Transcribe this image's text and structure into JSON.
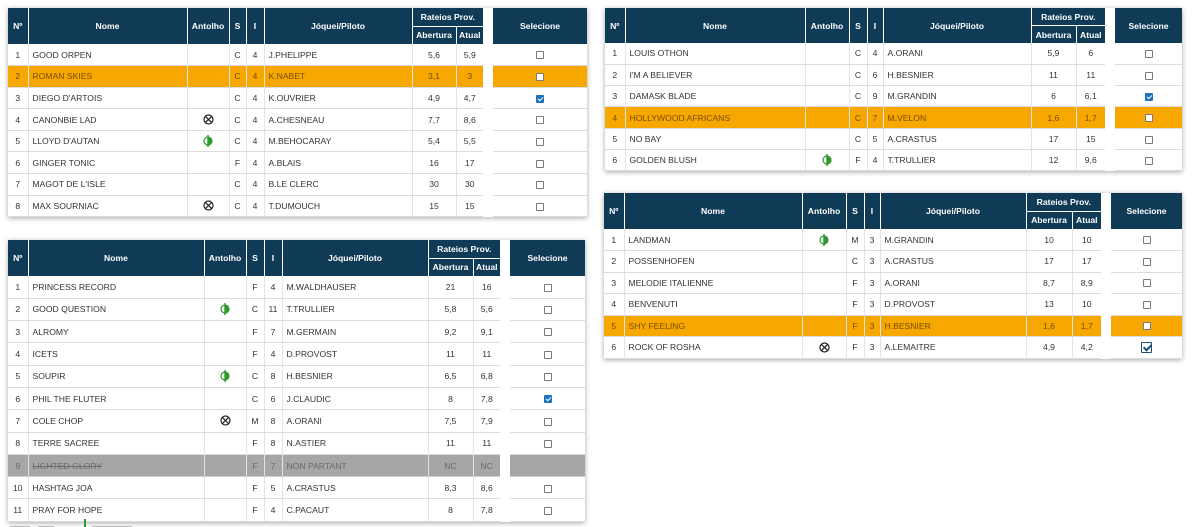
{
  "headers": {
    "no": "Nº",
    "name": "Nome",
    "antolho": "Antolho",
    "s": "S",
    "i": "I",
    "jockey": "Jóquei/Piloto",
    "rateios": "Rateios Prov.",
    "abertura": "Abertura",
    "atual": "Atual",
    "selecione": "Selecione"
  },
  "icons": {
    "cross_blinkers": "crossed-circle-icon",
    "half_blinkers": "half-circle-icon"
  },
  "colors": {
    "header": "#0f3b57",
    "highlight": "#f6a800",
    "scratched": "#a6a6a6",
    "half_icon": "#2e9a2e"
  },
  "races": [
    {
      "rows": [
        {
          "no": "1",
          "name": "GOOD ORPEN",
          "antolho": "",
          "s": "C",
          "i": "4",
          "jockey": "J.PHELIPPE",
          "abertura": "5,6",
          "atual": "5,9",
          "checked": false,
          "state": ""
        },
        {
          "no": "2",
          "name": "ROMAN SKIES",
          "antolho": "",
          "s": "C",
          "i": "4",
          "jockey": "K.NABET",
          "abertura": "3,1",
          "atual": "3",
          "checked": false,
          "state": "hl"
        },
        {
          "no": "3",
          "name": "DIEGO D'ARTOIS",
          "antolho": "",
          "s": "C",
          "i": "4",
          "jockey": "K.OUVRIER",
          "abertura": "4,9",
          "atual": "4,7",
          "checked": true,
          "state": ""
        },
        {
          "no": "4",
          "name": "CANONBIE LAD",
          "antolho": "cross",
          "s": "C",
          "i": "4",
          "jockey": "A.CHESNEAU",
          "abertura": "7,7",
          "atual": "8,6",
          "checked": false,
          "state": ""
        },
        {
          "no": "5",
          "name": "LLOYD D'AUTAN",
          "antolho": "half",
          "s": "C",
          "i": "4",
          "jockey": "M.BEHOCARAY",
          "abertura": "5,4",
          "atual": "5,5",
          "checked": false,
          "state": ""
        },
        {
          "no": "6",
          "name": "GINGER TONIC",
          "antolho": "",
          "s": "F",
          "i": "4",
          "jockey": "A.BLAIS",
          "abertura": "16",
          "atual": "17",
          "checked": false,
          "state": ""
        },
        {
          "no": "7",
          "name": "MAGOT DE L'ISLE",
          "antolho": "",
          "s": "C",
          "i": "4",
          "jockey": "B.LE CLERC",
          "abertura": "30",
          "atual": "30",
          "checked": false,
          "state": ""
        },
        {
          "no": "8",
          "name": "MAX SOURNIAC",
          "antolho": "cross",
          "s": "C",
          "i": "4",
          "jockey": "T.DUMOUCH",
          "abertura": "15",
          "atual": "15",
          "checked": false,
          "state": ""
        }
      ]
    },
    {
      "rows": [
        {
          "no": "1",
          "name": "PRINCESS RECORD",
          "antolho": "",
          "s": "F",
          "i": "4",
          "jockey": "M.WALDHAUSER",
          "abertura": "21",
          "atual": "16",
          "checked": false,
          "state": ""
        },
        {
          "no": "2",
          "name": "GOOD QUESTION",
          "antolho": "half",
          "s": "C",
          "i": "11",
          "jockey": "T.TRULLIER",
          "abertura": "5,8",
          "atual": "5,6",
          "checked": false,
          "state": ""
        },
        {
          "no": "3",
          "name": "ALROMY",
          "antolho": "",
          "s": "F",
          "i": "7",
          "jockey": "M.GERMAIN",
          "abertura": "9,2",
          "atual": "9,1",
          "checked": false,
          "state": ""
        },
        {
          "no": "4",
          "name": "ICETS",
          "antolho": "",
          "s": "F",
          "i": "4",
          "jockey": "D.PROVOST",
          "abertura": "11",
          "atual": "11",
          "checked": false,
          "state": ""
        },
        {
          "no": "5",
          "name": "SOUPIR",
          "antolho": "half",
          "s": "C",
          "i": "8",
          "jockey": "H.BESNIER",
          "abertura": "6,5",
          "atual": "6,8",
          "checked": false,
          "state": ""
        },
        {
          "no": "6",
          "name": "PHIL THE FLUTER",
          "antolho": "",
          "s": "C",
          "i": "6",
          "jockey": "J.CLAUDIC",
          "abertura": "8",
          "atual": "7,8",
          "checked": true,
          "state": ""
        },
        {
          "no": "7",
          "name": "COLE CHOP",
          "antolho": "cross",
          "s": "M",
          "i": "8",
          "jockey": "A.ORANI",
          "abertura": "7,5",
          "atual": "7,9",
          "checked": false,
          "state": ""
        },
        {
          "no": "8",
          "name": "TERRE SACREE",
          "antolho": "",
          "s": "F",
          "i": "8",
          "jockey": "N.ASTIER",
          "abertura": "11",
          "atual": "11",
          "checked": false,
          "state": ""
        },
        {
          "no": "9",
          "name": "LIGHTED GLORY",
          "antolho": "",
          "s": "F",
          "i": "7",
          "jockey": "NON PARTANT",
          "abertura": "NC",
          "atual": "NC",
          "checked": false,
          "state": "scr"
        },
        {
          "no": "10",
          "name": "HASHTAG JOA",
          "antolho": "",
          "s": "F",
          "i": "5",
          "jockey": "A.CRASTUS",
          "abertura": "8,3",
          "atual": "8,6",
          "checked": false,
          "state": ""
        },
        {
          "no": "11",
          "name": "PRAY FOR HOPE",
          "antolho": "",
          "s": "F",
          "i": "4",
          "jockey": "C.PACAUT",
          "abertura": "8",
          "atual": "7,8",
          "checked": false,
          "state": ""
        }
      ]
    },
    {
      "rows": [
        {
          "no": "1",
          "name": "LOUIS OTHON",
          "antolho": "",
          "s": "C",
          "i": "4",
          "jockey": "A.ORANI",
          "abertura": "5,9",
          "atual": "6",
          "checked": false,
          "state": ""
        },
        {
          "no": "2",
          "name": "I'M A BELIEVER",
          "antolho": "",
          "s": "C",
          "i": "6",
          "jockey": "H.BESNIER",
          "abertura": "11",
          "atual": "11",
          "checked": false,
          "state": ""
        },
        {
          "no": "3",
          "name": "DAMASK BLADE",
          "antolho": "",
          "s": "C",
          "i": "9",
          "jockey": "M.GRANDIN",
          "abertura": "6",
          "atual": "6,1",
          "checked": true,
          "state": ""
        },
        {
          "no": "4",
          "name": "HOLLYWOOD AFRICANS",
          "antolho": "",
          "s": "C",
          "i": "7",
          "jockey": "M.VELON",
          "abertura": "1,6",
          "atual": "1,7",
          "checked": false,
          "state": "hl"
        },
        {
          "no": "5",
          "name": "NO BAY",
          "antolho": "",
          "s": "C",
          "i": "5",
          "jockey": "A.CRASTUS",
          "abertura": "17",
          "atual": "15",
          "checked": false,
          "state": ""
        },
        {
          "no": "6",
          "name": "GOLDEN BLUSH",
          "antolho": "half",
          "s": "F",
          "i": "4",
          "jockey": "T.TRULLIER",
          "abertura": "12",
          "atual": "9,6",
          "checked": false,
          "state": ""
        }
      ]
    },
    {
      "rows": [
        {
          "no": "1",
          "name": "LANDMAN",
          "antolho": "half",
          "s": "M",
          "i": "3",
          "jockey": "M.GRANDIN",
          "abertura": "10",
          "atual": "10",
          "checked": false,
          "state": ""
        },
        {
          "no": "2",
          "name": "POSSENHOFEN",
          "antolho": "",
          "s": "C",
          "i": "3",
          "jockey": "A.CRASTUS",
          "abertura": "17",
          "atual": "17",
          "checked": false,
          "state": ""
        },
        {
          "no": "3",
          "name": "MELODIE ITALIENNE",
          "antolho": "",
          "s": "F",
          "i": "3",
          "jockey": "A.ORANI",
          "abertura": "8,7",
          "atual": "8,9",
          "checked": false,
          "state": ""
        },
        {
          "no": "4",
          "name": "BENVENUTI",
          "antolho": "",
          "s": "F",
          "i": "3",
          "jockey": "D.PROVOST",
          "abertura": "13",
          "atual": "10",
          "checked": false,
          "state": ""
        },
        {
          "no": "5",
          "name": "SHY FEELING",
          "antolho": "",
          "s": "F",
          "i": "3",
          "jockey": "H.BESNIER",
          "abertura": "1,6",
          "atual": "1,7",
          "checked": false,
          "state": "hl"
        },
        {
          "no": "6",
          "name": "ROCK OF ROSHA",
          "antolho": "cross",
          "s": "F",
          "i": "3",
          "jockey": "A.LEMAITRE",
          "abertura": "4,9",
          "atual": "4,2",
          "checked": true,
          "state": "focus"
        }
      ]
    }
  ]
}
